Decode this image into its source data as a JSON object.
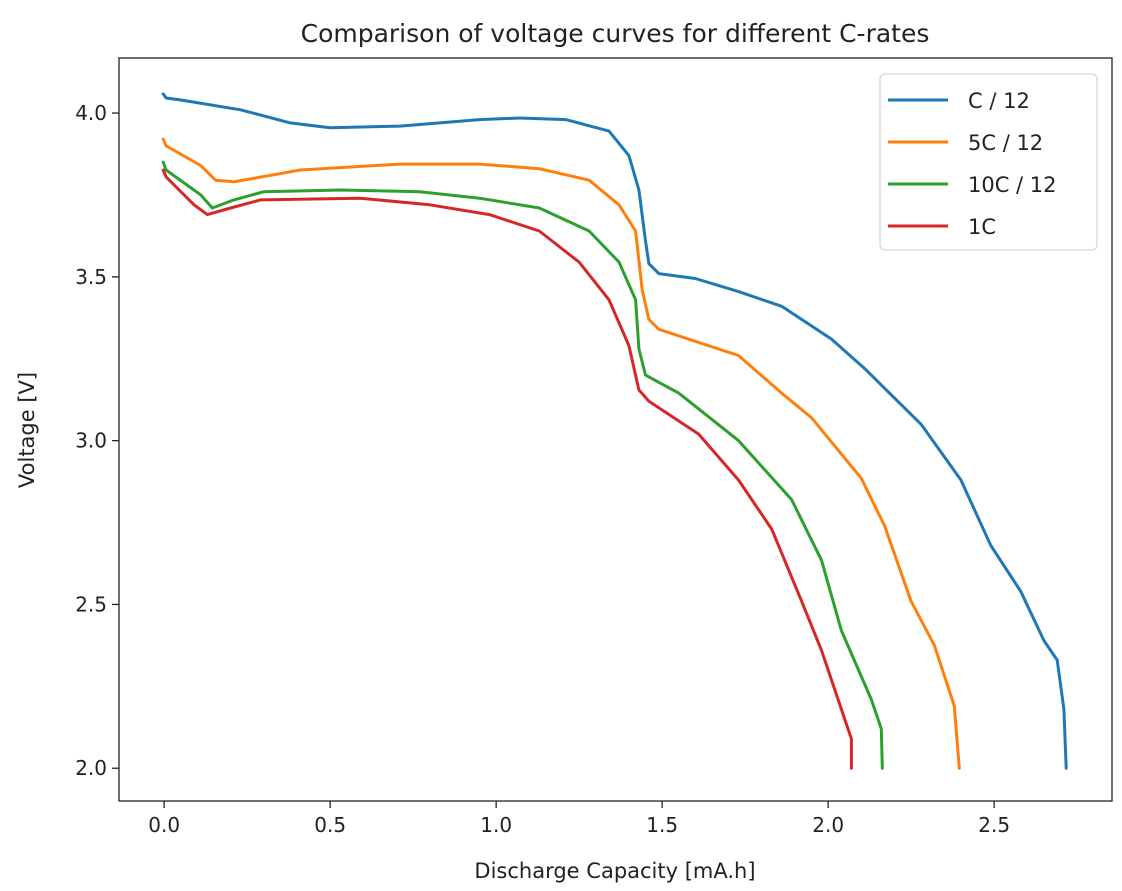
{
  "chart_data": {
    "type": "line",
    "title": "Comparison of voltage curves for different C-rates",
    "xlabel": "Discharge Capacity [mA.h]",
    "ylabel": "Voltage [V]",
    "xlim": [
      -0.136,
      2.855
    ],
    "ylim": [
      1.9,
      4.168
    ],
    "xticks": [
      0.0,
      0.5,
      1.0,
      1.5,
      2.0,
      2.5
    ],
    "xtick_labels": [
      "0.0",
      "0.5",
      "1.0",
      "1.5",
      "2.0",
      "2.5"
    ],
    "yticks": [
      2.0,
      2.5,
      3.0,
      3.5,
      4.0
    ],
    "ytick_labels": [
      "2.0",
      "2.5",
      "3.0",
      "3.5",
      "4.0"
    ],
    "grid": false,
    "legend_position": "top-right",
    "series": [
      {
        "name": "C / 12",
        "color": "#1f77b4",
        "x": [
          -0.003,
          0.006,
          0.048,
          0.23,
          0.38,
          0.5,
          0.71,
          0.95,
          1.07,
          1.21,
          1.34,
          1.4,
          1.43,
          1.45,
          1.46,
          1.49,
          1.6,
          1.73,
          1.86,
          2.01,
          2.11,
          2.28,
          2.4,
          2.49,
          2.58,
          2.65,
          2.69,
          2.71,
          2.717
        ],
        "y": [
          4.058,
          4.046,
          4.04,
          4.01,
          3.97,
          3.955,
          3.96,
          3.98,
          3.985,
          3.98,
          3.945,
          3.87,
          3.765,
          3.61,
          3.54,
          3.51,
          3.495,
          3.455,
          3.41,
          3.31,
          3.22,
          3.05,
          2.88,
          2.68,
          2.54,
          2.39,
          2.33,
          2.18,
          2.0
        ]
      },
      {
        "name": "5C / 12",
        "color": "#ff7f0e",
        "x": [
          -0.003,
          0.006,
          0.11,
          0.155,
          0.21,
          0.41,
          0.71,
          0.95,
          1.13,
          1.28,
          1.37,
          1.42,
          1.44,
          1.46,
          1.49,
          1.61,
          1.73,
          1.86,
          1.95,
          2.1,
          2.17,
          2.25,
          2.32,
          2.38,
          2.395
        ],
        "y": [
          3.92,
          3.9,
          3.84,
          3.795,
          3.79,
          3.826,
          3.844,
          3.844,
          3.83,
          3.795,
          3.72,
          3.64,
          3.46,
          3.37,
          3.34,
          3.3,
          3.26,
          3.145,
          3.07,
          2.885,
          2.74,
          2.51,
          2.375,
          2.19,
          2.0
        ]
      },
      {
        "name": "10C / 12",
        "color": "#2ca02c",
        "x": [
          -0.003,
          0.006,
          0.11,
          0.145,
          0.21,
          0.3,
          0.53,
          0.77,
          0.95,
          1.13,
          1.28,
          1.37,
          1.42,
          1.43,
          1.45,
          1.55,
          1.73,
          1.89,
          1.98,
          2.04,
          2.13,
          2.16,
          2.163
        ],
        "y": [
          3.85,
          3.826,
          3.75,
          3.71,
          3.735,
          3.76,
          3.765,
          3.76,
          3.74,
          3.71,
          3.64,
          3.545,
          3.43,
          3.28,
          3.2,
          3.145,
          3.0,
          2.82,
          2.635,
          2.42,
          2.21,
          2.12,
          2.0
        ]
      },
      {
        "name": "1C",
        "color": "#d62728",
        "x": [
          -0.003,
          0.006,
          0.09,
          0.13,
          0.2,
          0.29,
          0.59,
          0.8,
          0.98,
          1.13,
          1.25,
          1.34,
          1.4,
          1.43,
          1.46,
          1.61,
          1.73,
          1.83,
          1.92,
          1.98,
          2.05,
          2.07,
          2.07
        ],
        "y": [
          3.826,
          3.805,
          3.72,
          3.69,
          3.71,
          3.735,
          3.74,
          3.72,
          3.69,
          3.64,
          3.545,
          3.43,
          3.29,
          3.155,
          3.12,
          3.02,
          2.88,
          2.73,
          2.51,
          2.36,
          2.15,
          2.09,
          2.0
        ]
      }
    ]
  }
}
